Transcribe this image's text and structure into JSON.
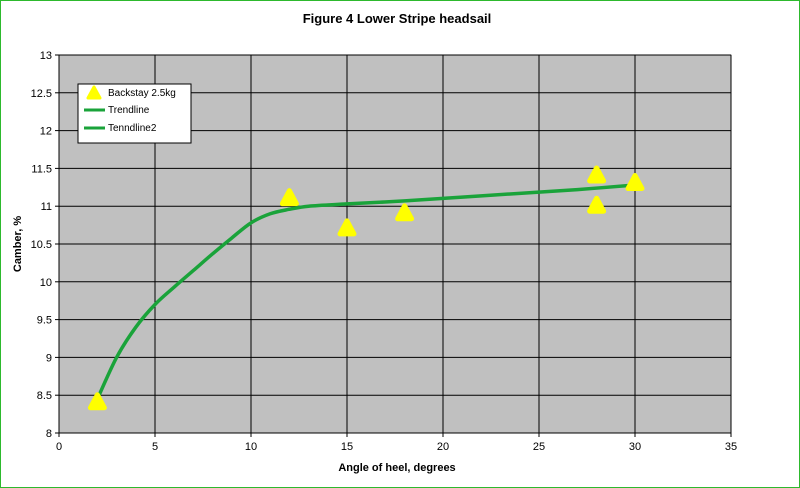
{
  "chart_data": {
    "type": "scatter",
    "title": "Figure 4 Lower Stripe headsail",
    "xlabel": "Angle of heel, degrees",
    "ylabel": "Camber, %",
    "xlim": [
      0,
      35
    ],
    "ylim": [
      8,
      13
    ],
    "x_ticks": [
      "0",
      "5",
      "10",
      "15",
      "20",
      "25",
      "30",
      "35"
    ],
    "y_ticks": [
      "8",
      "8.5",
      "9",
      "9.5",
      "10",
      "10.5",
      "11",
      "11.5",
      "12",
      "12.5",
      "13"
    ],
    "grid": true,
    "legend_position": "top-left",
    "plot_background": "#c0c0c0",
    "series": [
      {
        "name": "Backstay 2.5kg",
        "kind": "scatter",
        "marker": "triangle",
        "color": "#ffff00",
        "points": [
          {
            "x": 2,
            "y": 8.4
          },
          {
            "x": 12,
            "y": 11.1
          },
          {
            "x": 15,
            "y": 10.7
          },
          {
            "x": 18,
            "y": 10.9
          },
          {
            "x": 28,
            "y": 11.4
          },
          {
            "x": 28,
            "y": 11.0
          },
          {
            "x": 30,
            "y": 11.3
          }
        ]
      },
      {
        "name": "Trendline",
        "kind": "line",
        "color": "#1aa33a",
        "points": [
          {
            "x": 2,
            "y": 8.45
          },
          {
            "x": 3,
            "y": 9.0
          },
          {
            "x": 4,
            "y": 9.4
          },
          {
            "x": 5,
            "y": 9.7
          },
          {
            "x": 6,
            "y": 9.93
          },
          {
            "x": 7,
            "y": 10.15
          },
          {
            "x": 8,
            "y": 10.37
          },
          {
            "x": 9,
            "y": 10.58
          },
          {
            "x": 10,
            "y": 10.78
          },
          {
            "x": 11,
            "y": 10.9
          },
          {
            "x": 12,
            "y": 10.96
          }
        ]
      },
      {
        "name": "Tenndline2",
        "kind": "line",
        "color": "#1aa33a",
        "points": [
          {
            "x": 12,
            "y": 10.96
          },
          {
            "x": 13,
            "y": 11.0
          },
          {
            "x": 15,
            "y": 11.03
          },
          {
            "x": 18,
            "y": 11.07
          },
          {
            "x": 21,
            "y": 11.12
          },
          {
            "x": 24,
            "y": 11.17
          },
          {
            "x": 27,
            "y": 11.22
          },
          {
            "x": 30,
            "y": 11.28
          }
        ]
      }
    ]
  }
}
